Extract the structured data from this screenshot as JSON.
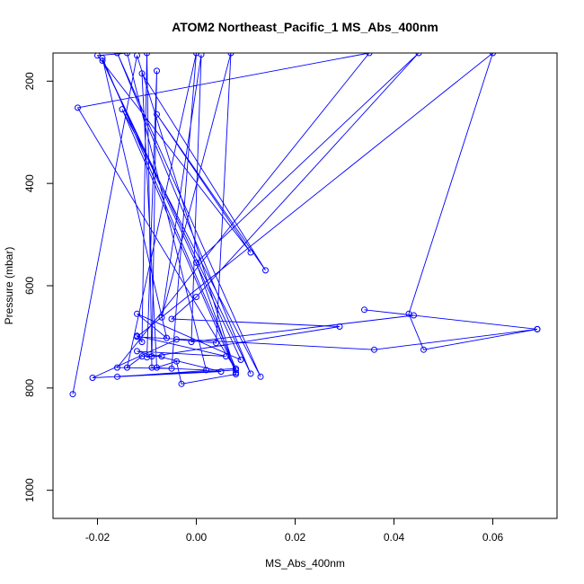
{
  "chart_data": {
    "type": "line",
    "title": "ATOM2 Northeast_Pacific_1 MS_Abs_400nm",
    "xlabel": "MS_Abs_400nm",
    "ylabel": "Pressure (mbar)",
    "xlim": [
      -0.029,
      0.073
    ],
    "ylim": [
      1055,
      145
    ],
    "y_reversed": true,
    "x_ticks": [
      -0.02,
      0.0,
      0.02,
      0.04,
      0.06
    ],
    "x_tick_labels": [
      "-0.02",
      "0.00",
      "0.02",
      "0.04",
      "0.06"
    ],
    "y_ticks": [
      200,
      400,
      600,
      800,
      1000
    ],
    "y_tick_labels": [
      "200",
      "400",
      "600",
      "800",
      "1000"
    ],
    "grid": false,
    "legend": "none",
    "series_color": "#0000ff",
    "marker": "open-circle",
    "series": [
      {
        "points": [
          [
            -0.025,
            812
          ],
          [
            -0.012,
            150
          ],
          [
            0.008,
            770
          ],
          [
            -0.015,
            255
          ],
          [
            0.013,
            778
          ],
          [
            -0.016,
            145
          ],
          [
            0.011,
            772
          ],
          [
            -0.019,
            160
          ],
          [
            0.009,
            745
          ],
          [
            -0.012,
            655
          ],
          [
            -0.006,
            702
          ],
          [
            -0.019,
            155
          ],
          [
            0.008,
            762
          ],
          [
            -0.016,
            778
          ],
          [
            0.005,
            768
          ],
          [
            -0.012,
            728
          ],
          [
            0.006,
            738
          ],
          [
            -0.012,
            698
          ],
          [
            -0.011,
            710
          ],
          [
            -0.01,
            145
          ],
          [
            -0.009,
            760
          ],
          [
            0.002,
            765
          ],
          [
            -0.014,
            145
          ],
          [
            -0.02,
            150
          ],
          [
            0.011,
            535
          ],
          [
            -0.008,
            265
          ],
          [
            0.014,
            570
          ],
          [
            -0.011,
            185
          ],
          [
            -0.008,
            760
          ],
          [
            -0.004,
            748
          ],
          [
            -0.003,
            792
          ],
          [
            0.008,
            773
          ],
          [
            0.0,
            555
          ],
          [
            0.045,
            145
          ],
          [
            0.0,
            622
          ],
          [
            -0.005,
            665
          ],
          [
            0.029,
            680
          ],
          [
            -0.01,
            740
          ],
          [
            -0.008,
            180
          ],
          [
            -0.009,
            738
          ],
          [
            -0.007,
            738
          ],
          [
            -0.011,
            738
          ],
          [
            -0.014,
            760
          ],
          [
            0.0,
            145
          ],
          [
            -0.005,
            762
          ],
          [
            -0.016,
            760
          ],
          [
            0.035,
            145
          ],
          [
            -0.024,
            252
          ],
          [
            0.008,
            765
          ],
          [
            -0.021,
            780
          ],
          [
            -0.004,
            705
          ],
          [
            0.004,
            712
          ],
          [
            0.007,
            145
          ],
          [
            -0.007,
            662
          ],
          [
            0.001,
            148
          ],
          [
            -0.001,
            710
          ],
          [
            0.044,
            658
          ],
          [
            0.034,
            647
          ],
          [
            0.069,
            685
          ],
          [
            0.046,
            725
          ],
          [
            0.043,
            655
          ],
          [
            0.06,
            145
          ],
          [
            -0.012,
            700
          ],
          [
            0.036,
            725
          ],
          [
            0.069,
            685
          ]
        ]
      }
    ]
  }
}
